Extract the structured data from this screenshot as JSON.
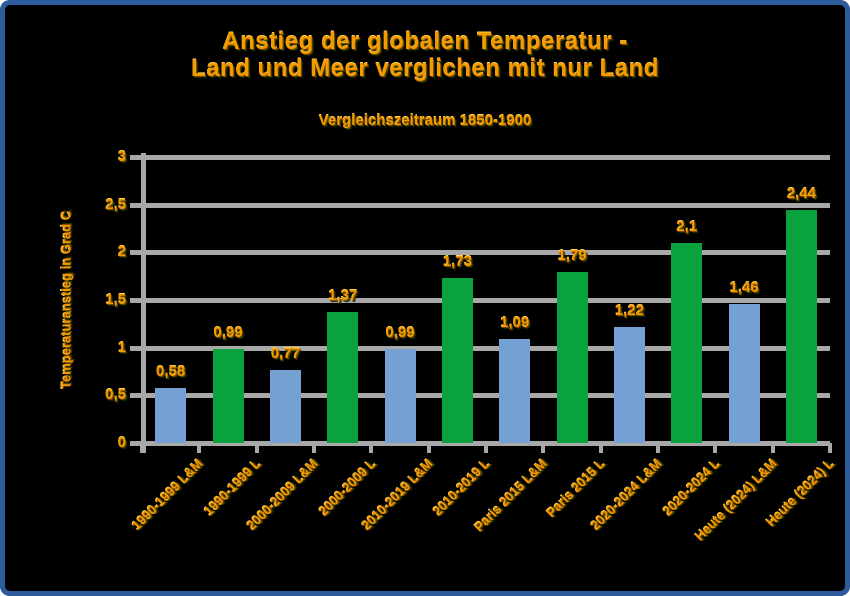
{
  "frame": {
    "background": "#000000",
    "border_color": "#2d5c9e"
  },
  "title": {
    "line1": "Anstieg der globalen Temperatur -",
    "line2": "Land und Meer verglichen mit nur Land",
    "subtitle": "Vergleichszeitraum 1850-1900",
    "text_color": "#f49b00"
  },
  "chart_data": {
    "type": "bar",
    "title": "Anstieg der globalen Temperatur - Land und Meer verglichen mit nur Land",
    "subtitle": "Vergleichszeitraum 1850-1900",
    "ylabel": "Temperaturanstieg in Grad C",
    "xlabel": "",
    "ylim": [
      0,
      3
    ],
    "grid": true,
    "legend_position": "none",
    "grid_color": "#a8a8a8",
    "colors": {
      "land_und_meer": "#74a0d3",
      "nur_land": "#0aa23e"
    },
    "yticks": [
      {
        "value": 0,
        "label": "0"
      },
      {
        "value": 0.5,
        "label": "0,5"
      },
      {
        "value": 1,
        "label": "1"
      },
      {
        "value": 1.5,
        "label": "1,5"
      },
      {
        "value": 2,
        "label": "2"
      },
      {
        "value": 2.5,
        "label": "2,5"
      },
      {
        "value": 3,
        "label": "3"
      }
    ],
    "bars": [
      {
        "category": "1990-1999 L&M",
        "value": 0.58,
        "label": "0,58",
        "series": "L&M",
        "color_key": "land_und_meer"
      },
      {
        "category": "1990-1999 L",
        "value": 0.99,
        "label": "0,99",
        "series": "L",
        "color_key": "nur_land"
      },
      {
        "category": "2000-2009 L&M",
        "value": 0.77,
        "label": "0,77",
        "series": "L&M",
        "color_key": "land_und_meer"
      },
      {
        "category": "2000-2009 L",
        "value": 1.37,
        "label": "1,37",
        "series": "L",
        "color_key": "nur_land"
      },
      {
        "category": "2010-2019 L&M",
        "value": 0.99,
        "label": "0,99",
        "series": "L&M",
        "color_key": "land_und_meer"
      },
      {
        "category": "2010-2019 L",
        "value": 1.73,
        "label": "1,73",
        "series": "L",
        "color_key": "nur_land"
      },
      {
        "category": "Paris 2015 L&M",
        "value": 1.09,
        "label": "1,09",
        "series": "L&M",
        "color_key": "land_und_meer"
      },
      {
        "category": "Paris 2015 L",
        "value": 1.79,
        "label": "1,79",
        "series": "L",
        "color_key": "nur_land"
      },
      {
        "category": "2020-2024 L&M",
        "value": 1.22,
        "label": "1,22",
        "series": "L&M",
        "color_key": "land_und_meer"
      },
      {
        "category": "2020-2024 L",
        "value": 2.1,
        "label": "2,1",
        "series": "L",
        "color_key": "nur_land"
      },
      {
        "category": "Heute (2024) L&M",
        "value": 1.46,
        "label": "1,46",
        "series": "L&M",
        "color_key": "land_und_meer"
      },
      {
        "category": "Heute (2024) L",
        "value": 2.44,
        "label": "2,44",
        "series": "L",
        "color_key": "nur_land"
      }
    ]
  }
}
